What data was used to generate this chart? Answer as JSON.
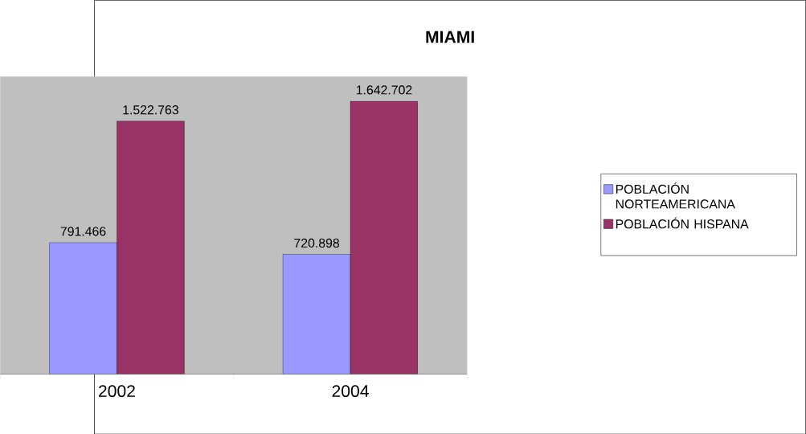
{
  "chart_data": {
    "type": "bar",
    "title": "MIAMI",
    "categories": [
      "2002",
      "2004"
    ],
    "series": [
      {
        "name": "POBLACIÓN NORTEAMERICANA",
        "color": "#9999ff",
        "values": [
          791466,
          720898
        ],
        "value_labels": [
          "791.466",
          "720.898"
        ]
      },
      {
        "name": "POBLACIÓN HISPANA",
        "color": "#993366",
        "values": [
          1522763,
          1642702
        ],
        "value_labels": [
          "1.522.763",
          "1.642.702"
        ]
      }
    ],
    "legend": "right"
  }
}
